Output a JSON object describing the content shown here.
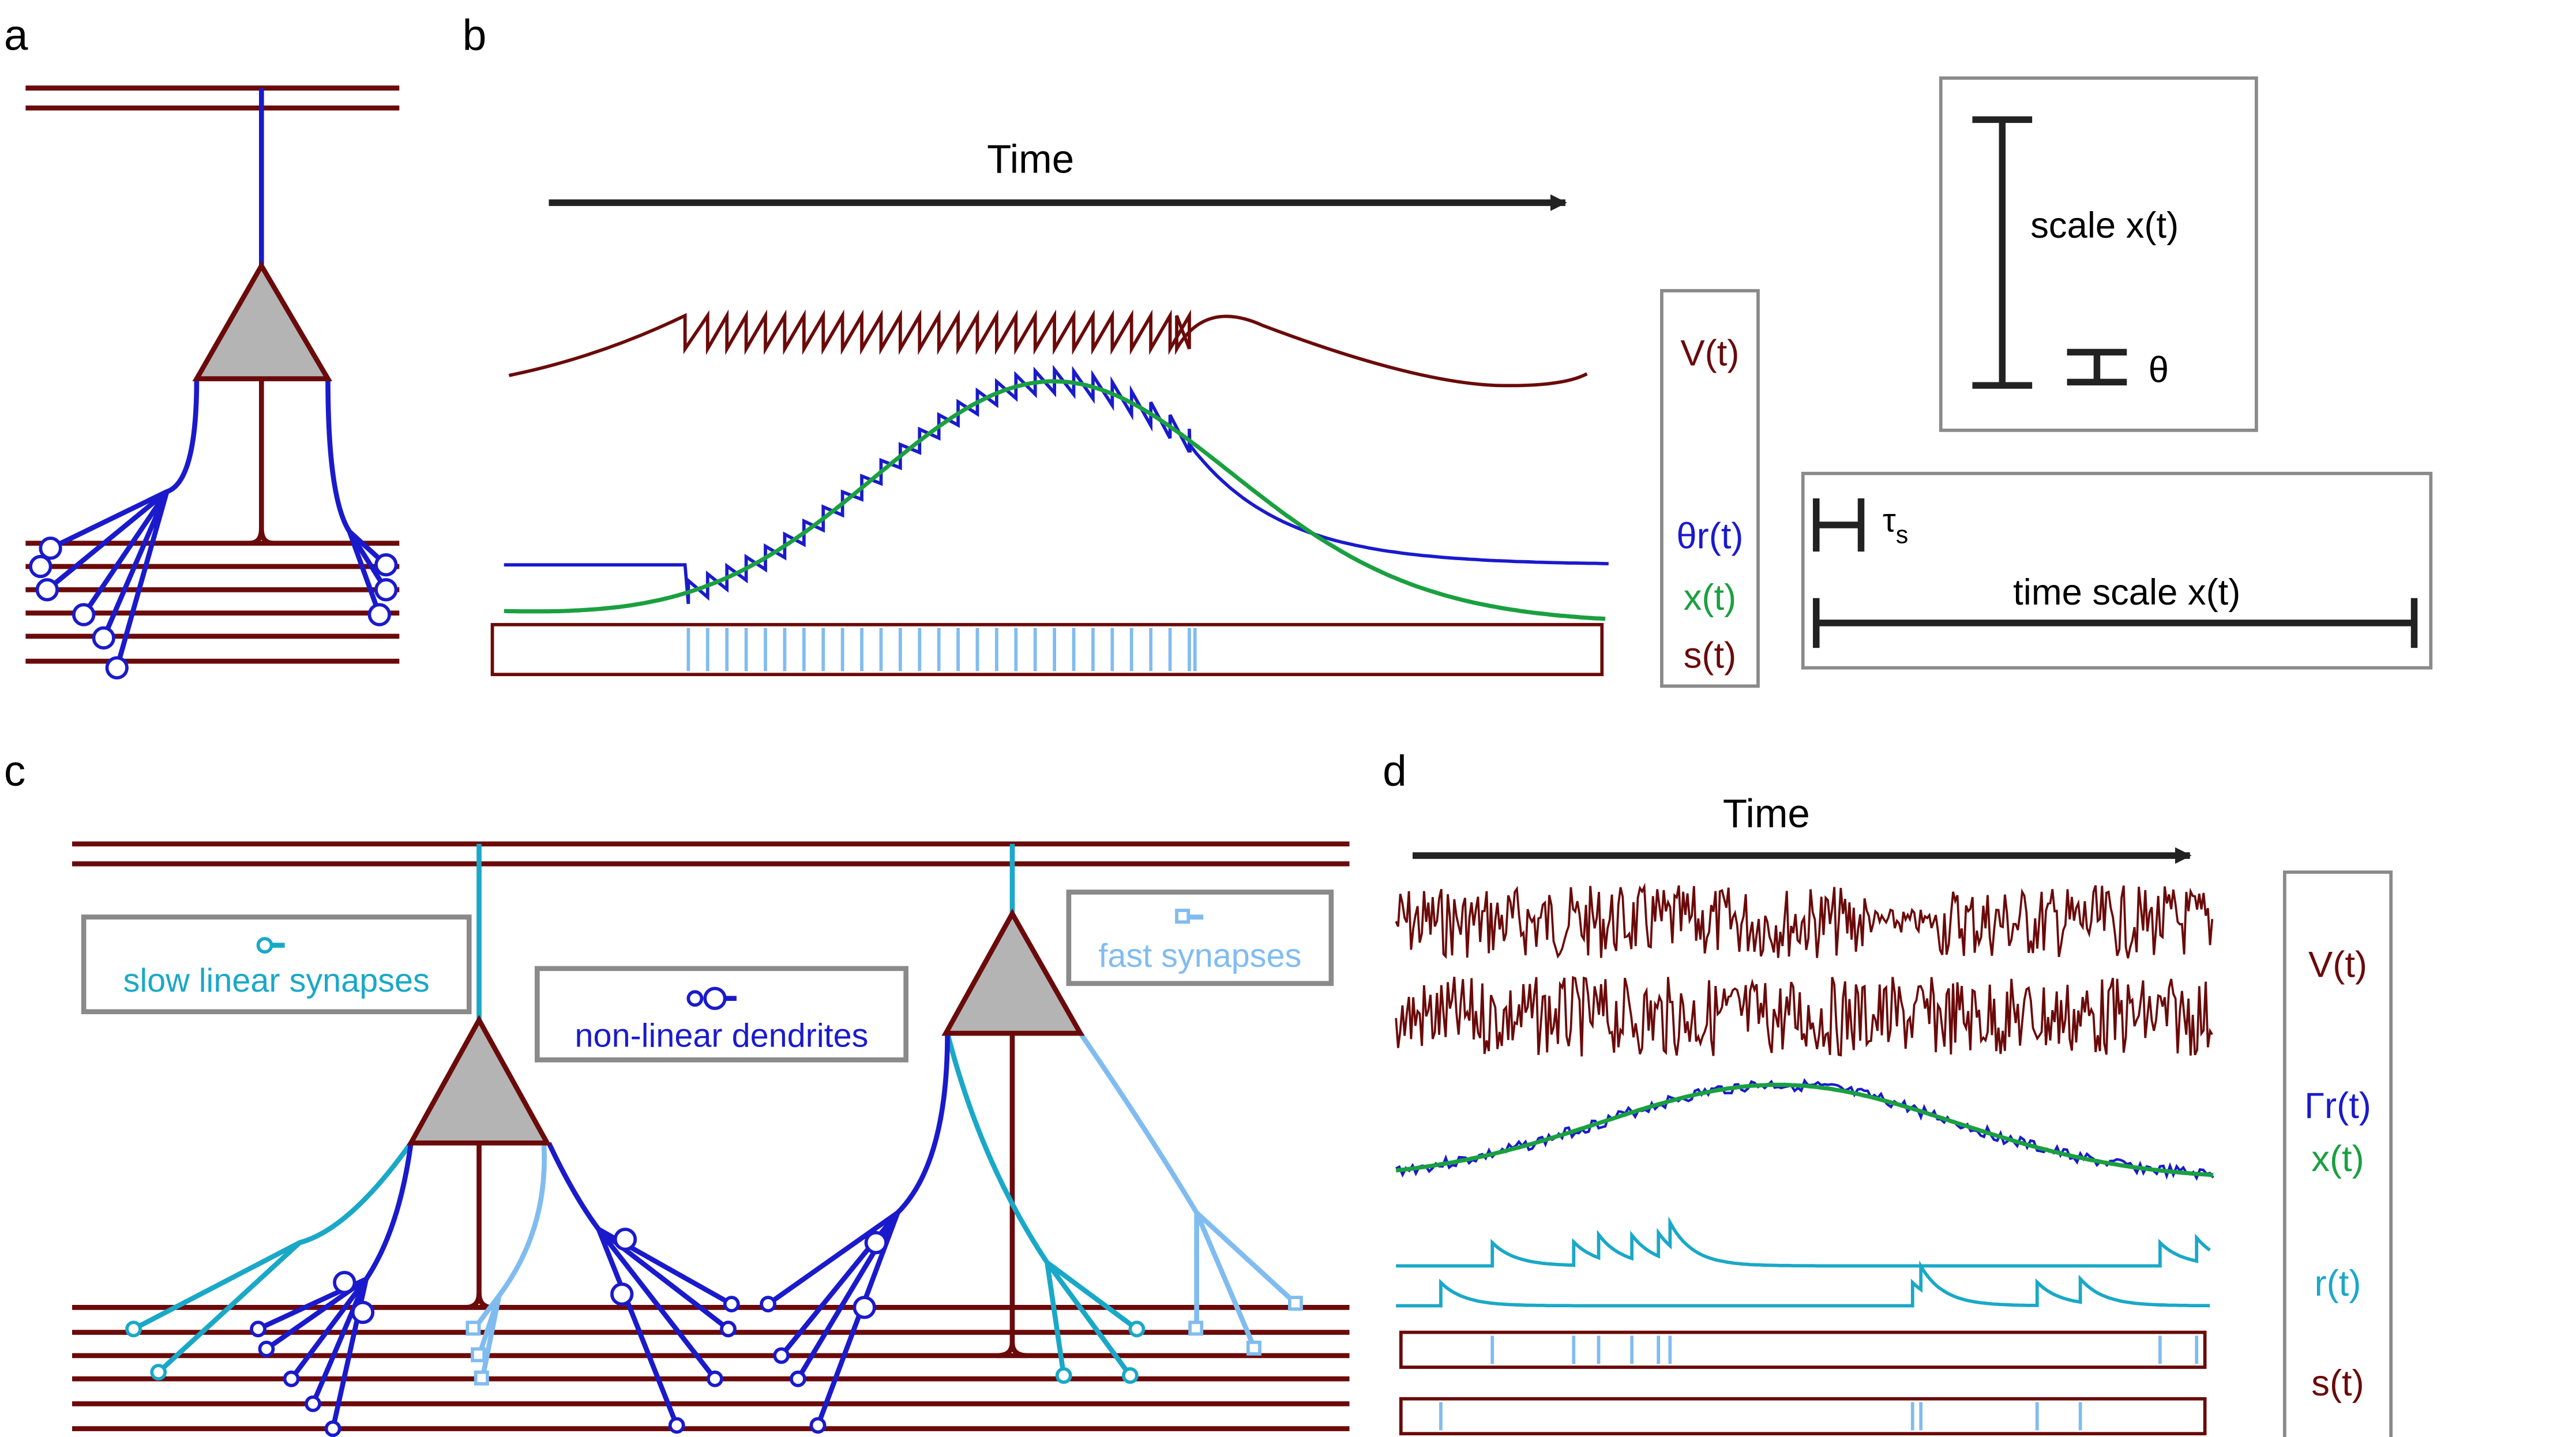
{
  "panels": {
    "a": {
      "label": "a"
    },
    "b": {
      "label": "b",
      "time_label": "Time",
      "legend": {
        "v": "V(t)",
        "theta_r": "θr(t)",
        "x": "x(t)",
        "s": "s(t)"
      },
      "scale_box": {
        "scale_x": "scale x(t)",
        "theta": "θ"
      },
      "time_box": {
        "tau_main": "τ",
        "tau_sub": "s",
        "time_scale": "time scale x(t)"
      }
    },
    "c": {
      "label": "c",
      "slow_label": "slow linear synapses",
      "nonlinear_label": "non-linear dendrites",
      "fast_label": "fast synapses"
    },
    "d": {
      "label": "d",
      "time_label": "Time",
      "legend": {
        "v": "V(t)",
        "gamma_r": "Γr(t)",
        "x": "x(t)",
        "r": "r(t)",
        "s": "s(t)"
      }
    }
  },
  "colors": {
    "dark_red": "#6b0a0a",
    "blue": "#1a1acc",
    "green": "#1aa040",
    "cyan": "#1aa8c8",
    "light_blue": "#80bcf0",
    "black": "#222222",
    "gray_box": "#8a8a8a",
    "soma_fill": "#b4b4b4"
  }
}
